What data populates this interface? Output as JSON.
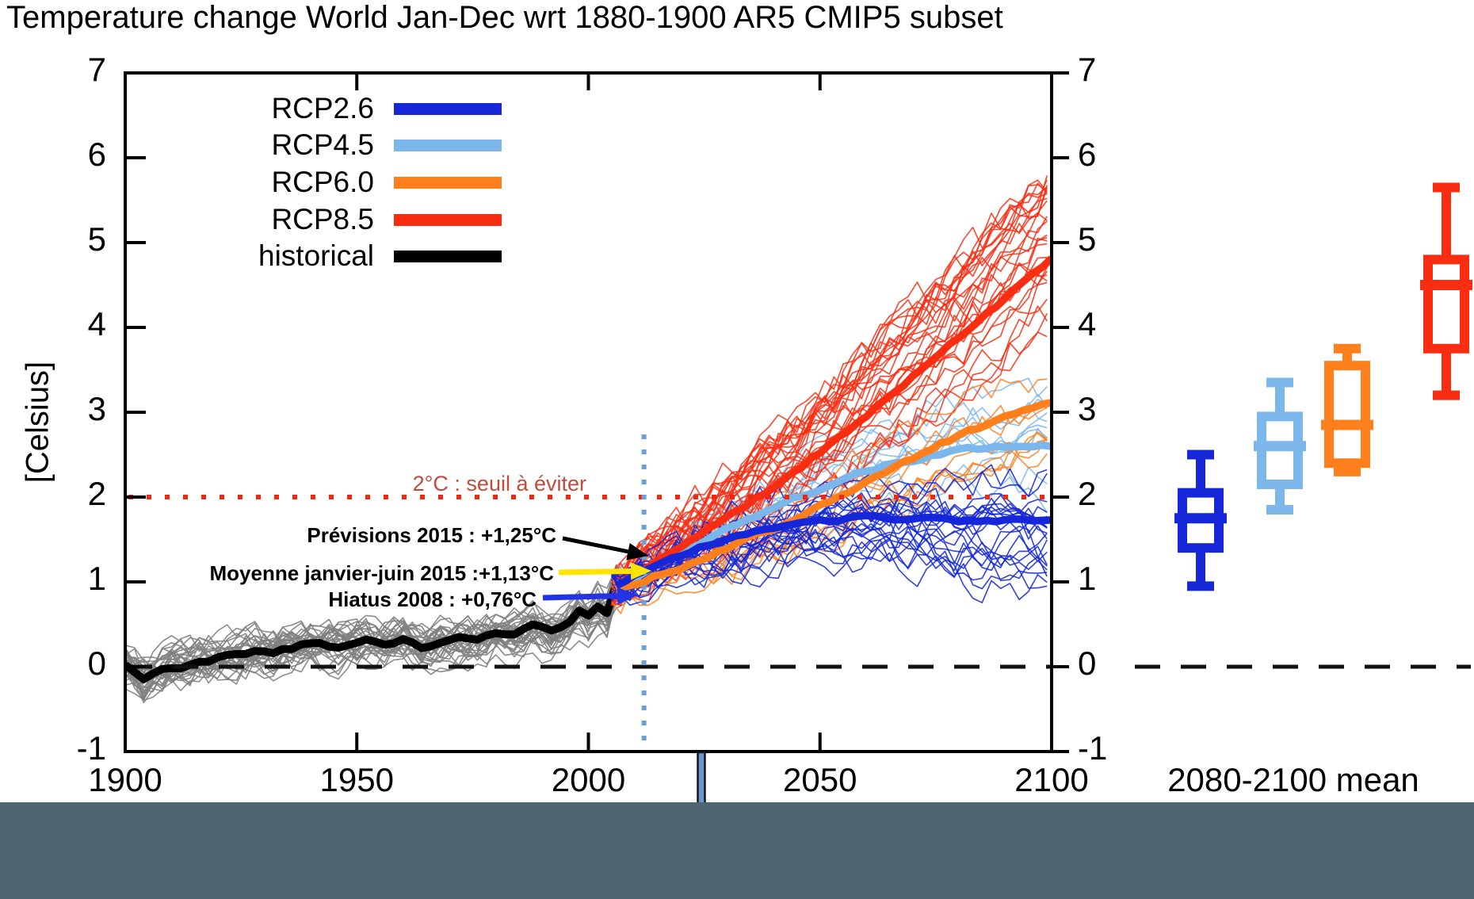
{
  "title": "Temperature change World Jan-Dec wrt 1880-1900 AR5 CMIP5 subset",
  "y_axis_label": "[Celsius]",
  "axes": {
    "y_ticks_left": [
      "7",
      "6",
      "5",
      "4",
      "3",
      "2",
      "1",
      "0",
      "-1"
    ],
    "y_ticks_right": [
      "7",
      "6",
      "5",
      "4",
      "3",
      "2",
      "1",
      "0",
      "-1"
    ],
    "x_ticks": [
      "1900",
      "1950",
      "2000",
      "2050",
      "2100"
    ],
    "right_panel_label": "2080-2100 mean"
  },
  "legend": {
    "items": [
      {
        "label": "RCP2.6",
        "color": "#1527d8"
      },
      {
        "label": "RCP4.5",
        "color": "#7cb7ec"
      },
      {
        "label": "RCP6.0",
        "color": "#ff7f1c"
      },
      {
        "label": "RCP8.5",
        "color": "#f92d12"
      },
      {
        "label": "historical",
        "color": "#000000"
      }
    ]
  },
  "threshold": {
    "label": "2°C : seuil à éviter",
    "value": 2,
    "line_color": "#ea2a14",
    "label_color": "#c14b3c"
  },
  "annotations": [
    {
      "text": "Prévisions 2015 : +1,25°C",
      "value": 1.25,
      "arrow_color": "#000000"
    },
    {
      "text": "Moyenne janvier-juin 2015 :+1,13°C",
      "value": 1.13,
      "arrow_color": "#ffe400"
    },
    {
      "text": "Hiatus 2008 : +0,76°C",
      "value": 0.76,
      "arrow_color": "#2433e6"
    }
  ],
  "time_cursor": {
    "year": 2024,
    "color": "#6b94c8"
  },
  "forecast_divider_year": 2012,
  "bottom_band_color": "#4d6570",
  "chart_data": {
    "type": "line",
    "title": "Temperature change World Jan-Dec wrt 1880-1900 AR5 CMIP5 subset",
    "xlabel": "",
    "ylabel": "[Celsius]",
    "x_range": [
      1900,
      2100
    ],
    "y_range": [
      -1,
      7
    ],
    "x_ticks": [
      1900,
      1950,
      2000,
      2050,
      2100
    ],
    "y_ticks": [
      -1,
      0,
      1,
      2,
      3,
      4,
      5,
      6,
      7
    ],
    "grid": false,
    "zero_line": 0,
    "threshold_line": 2,
    "vline_year": 2012,
    "series": [
      {
        "name": "historical",
        "color": "#000000",
        "ensemble_color": "#7f7f7f",
        "ensemble_count": 32,
        "x": [
          1900,
          1904,
          1908,
          1912,
          1916,
          1920,
          1924,
          1928,
          1932,
          1936,
          1940,
          1944,
          1948,
          1952,
          1956,
          1960,
          1964,
          1968,
          1972,
          1976,
          1980,
          1984,
          1988,
          1992,
          1996,
          1998,
          2000,
          2002,
          2004,
          2006
        ],
        "y": [
          0.02,
          -0.15,
          -0.02,
          0.0,
          0.05,
          0.1,
          0.15,
          0.2,
          0.17,
          0.22,
          0.28,
          0.24,
          0.26,
          0.3,
          0.27,
          0.33,
          0.22,
          0.3,
          0.33,
          0.3,
          0.4,
          0.37,
          0.47,
          0.4,
          0.5,
          0.64,
          0.58,
          0.7,
          0.64,
          0.97
        ]
      },
      {
        "name": "RCP4.5",
        "color": "#7cb7ec",
        "ensemble_count": 10,
        "x": [
          2006,
          2010,
          2015,
          2020,
          2025,
          2030,
          2035,
          2040,
          2045,
          2050,
          2055,
          2060,
          2065,
          2070,
          2075,
          2080,
          2085,
          2090,
          2095,
          2100
        ],
        "y": [
          0.93,
          1.05,
          1.2,
          1.33,
          1.48,
          1.62,
          1.75,
          1.88,
          2.0,
          2.1,
          2.2,
          2.3,
          2.38,
          2.44,
          2.5,
          2.54,
          2.58,
          2.6,
          2.61,
          2.62
        ]
      },
      {
        "name": "RCP8.5",
        "color": "#f92d12",
        "ensemble_count": 30,
        "x": [
          2006,
          2010,
          2015,
          2020,
          2025,
          2030,
          2035,
          2040,
          2045,
          2050,
          2055,
          2060,
          2065,
          2070,
          2075,
          2080,
          2085,
          2090,
          2095,
          2100
        ],
        "y": [
          0.92,
          1.08,
          1.25,
          1.4,
          1.58,
          1.75,
          1.93,
          2.12,
          2.32,
          2.52,
          2.74,
          2.97,
          3.19,
          3.42,
          3.64,
          3.87,
          4.1,
          4.35,
          4.58,
          4.8
        ]
      },
      {
        "name": "RCP6.0",
        "color": "#ff7f1c",
        "ensemble_count": 8,
        "x": [
          2006,
          2010,
          2015,
          2020,
          2025,
          2030,
          2035,
          2040,
          2045,
          2050,
          2055,
          2060,
          2065,
          2070,
          2075,
          2080,
          2085,
          2090,
          2095,
          2100
        ],
        "y": [
          0.9,
          0.98,
          1.08,
          1.18,
          1.3,
          1.4,
          1.52,
          1.63,
          1.75,
          1.88,
          2.03,
          2.18,
          2.32,
          2.46,
          2.6,
          2.72,
          2.84,
          2.95,
          3.04,
          3.12
        ]
      },
      {
        "name": "RCP2.6",
        "color": "#1527d8",
        "ensemble_count": 22,
        "x": [
          2006,
          2010,
          2015,
          2020,
          2025,
          2030,
          2035,
          2040,
          2045,
          2050,
          2055,
          2060,
          2065,
          2070,
          2075,
          2080,
          2085,
          2090,
          2095,
          2100
        ],
        "y": [
          0.95,
          1.06,
          1.2,
          1.32,
          1.42,
          1.5,
          1.57,
          1.63,
          1.68,
          1.71,
          1.74,
          1.75,
          1.75,
          1.75,
          1.74,
          1.73,
          1.72,
          1.72,
          1.71,
          1.72
        ]
      }
    ],
    "boxplots": {
      "label": "2080-2100 mean",
      "items": [
        {
          "name": "RCP2.6",
          "color": "#1527d8",
          "whisker_low": 0.95,
          "q1": 1.4,
          "median": 1.75,
          "q3": 2.05,
          "whisker_high": 2.5
        },
        {
          "name": "RCP4.5",
          "color": "#7cb7ec",
          "whisker_low": 1.85,
          "q1": 2.15,
          "median": 2.6,
          "q3": 2.95,
          "whisker_high": 3.35
        },
        {
          "name": "RCP6.0",
          "color": "#ff7f1c",
          "whisker_low": 2.3,
          "q1": 2.4,
          "median": 2.85,
          "q3": 3.55,
          "whisker_high": 3.75
        },
        {
          "name": "RCP8.5",
          "color": "#f92d12",
          "whisker_low": 3.2,
          "q1": 3.75,
          "median": 4.5,
          "q3": 4.8,
          "whisker_high": 5.65
        }
      ]
    }
  }
}
